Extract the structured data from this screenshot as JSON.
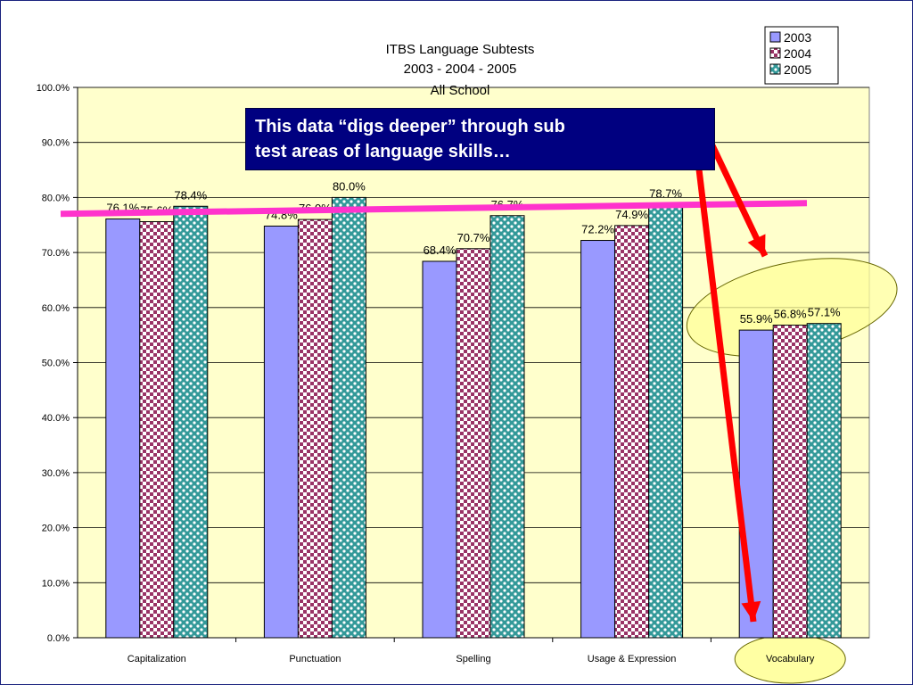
{
  "chart_data": {
    "type": "bar",
    "title": [
      "ITBS Language Subtests",
      "2003 - 2004 - 2005",
      "All School"
    ],
    "categories": [
      "Capitalization",
      "Punctuation",
      "Spelling",
      "Usage & Expression",
      "Vocabulary"
    ],
    "series": [
      {
        "name": "2003",
        "values": [
          76.1,
          74.8,
          68.4,
          72.2,
          55.9
        ],
        "labels": [
          "76.1%",
          "74.8%",
          "68.4%",
          "72.2%",
          "55.9%"
        ],
        "color": "#9999ff",
        "pattern": "solid"
      },
      {
        "name": "2004",
        "values": [
          75.6,
          76.0,
          70.7,
          74.9,
          56.8
        ],
        "labels": [
          "75.6%",
          "76.0%",
          "70.7%",
          "74.9%",
          "56.8%"
        ],
        "color": "#993366",
        "pattern": "checker"
      },
      {
        "name": "2005",
        "values": [
          78.4,
          80.0,
          76.7,
          78.7,
          57.1
        ],
        "labels": [
          "78.4%",
          "80.0%",
          "76.7%",
          "78.7%",
          "57.1%"
        ],
        "color": "#339999",
        "pattern": "dots"
      }
    ],
    "ylim": [
      0,
      100
    ],
    "yticks": [
      "0.0%",
      "10.0%",
      "20.0%",
      "30.0%",
      "40.0%",
      "50.0%",
      "60.0%",
      "70.0%",
      "80.0%",
      "90.0%",
      "100.0%"
    ],
    "grid": true,
    "legend_position": "top-right",
    "plot_background": "#ffffcc",
    "reference_line": {
      "value": 78.0,
      "color": "#ff33cc"
    }
  },
  "annotation": {
    "callout_line1": "This data  “digs deeper” through sub",
    "callout_line2": "test areas of language skills…",
    "callout_bg": "#000080",
    "arrow_color": "#ff0000",
    "highlight_fill": "#ffff99"
  }
}
